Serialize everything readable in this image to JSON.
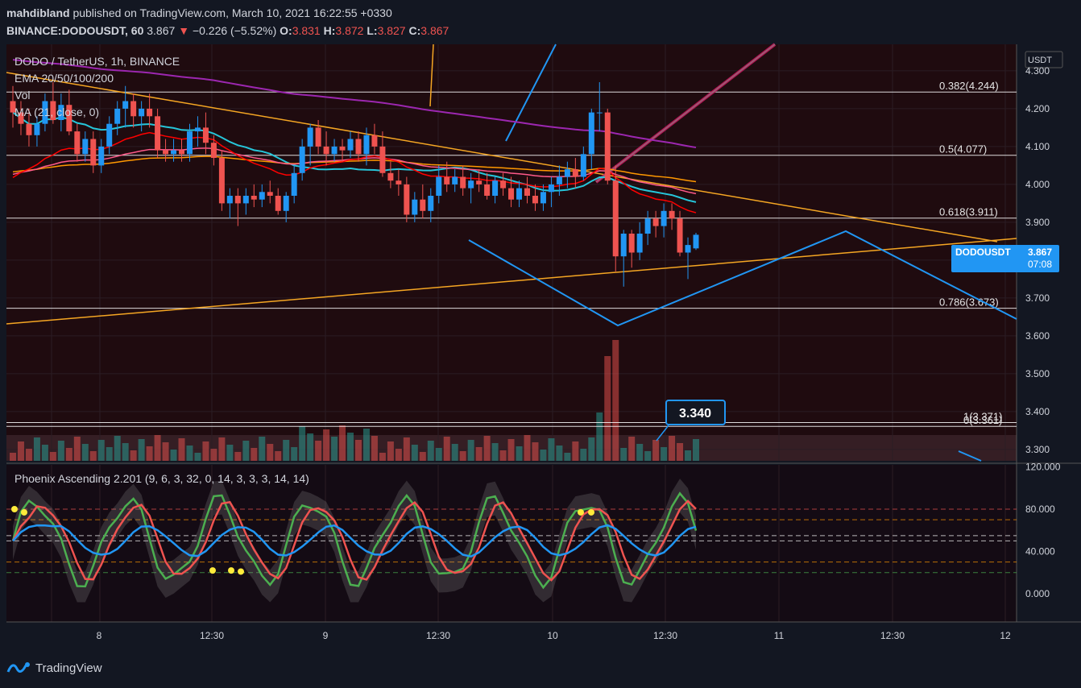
{
  "header": {
    "author": "mahdibland",
    "published_text": "published on TradingView.com, March 10, 2021 16:22:55 +0330",
    "symbol": "BINANCE:DODOUSDT, 60",
    "last": "3.867",
    "change": "−0.226 (−5.52%)",
    "o_label": "O:",
    "o": "3.831",
    "h_label": "H:",
    "h": "3.872",
    "l_label": "L:",
    "l": "3.827",
    "c_label": "C:",
    "c": "3.867"
  },
  "legend": {
    "title": "DODO / TetherUS, 1h, BINANCE",
    "ema": "EMA 20/50/100/200",
    "vol": "Vol",
    "ma": "MA (21, close, 0)",
    "osc": "Phoenix Ascending 2.201 (9, 6, 3, 32, 0, 14, 3, 3, 3, 14, 14)"
  },
  "price_axis": {
    "currency": "USDT",
    "ticks": [
      "4.300",
      "4.200",
      "4.100",
      "4.000",
      "3.900",
      "3.800",
      "3.700",
      "3.600",
      "3.500",
      "3.400",
      "3.300"
    ]
  },
  "osc_axis": {
    "ticks": [
      "120.000",
      "80.000",
      "40.000",
      "0.000"
    ]
  },
  "time_axis": {
    "ticks": [
      "8",
      "12:30",
      "9",
      "12:30",
      "10",
      "12:30",
      "11",
      "12:30",
      "12"
    ]
  },
  "fib_levels": [
    {
      "label": "0.382(4.244)",
      "value": 4.244
    },
    {
      "label": "0.5(4.077)",
      "value": 4.077
    },
    {
      "label": "0.618(3.911)",
      "value": 3.911
    },
    {
      "label": "0.786(3.673)",
      "value": 3.673
    },
    {
      "label": "1(3.371)",
      "value": 3.371
    },
    {
      "label": "0(3.361)",
      "value": 3.361
    }
  ],
  "price_tag": {
    "symbol": "DODOUSDT",
    "price": "3.867",
    "countdown": "07:08"
  },
  "callout": "3.340",
  "brand": "TradingView",
  "colors": {
    "up": "#2196f3",
    "down": "#ef5350",
    "ema20": "#ff0000",
    "ema50": "#ff9800",
    "ema100": "#ff5a8a",
    "ema200": "#9c27b0",
    "ma": "#26c6da",
    "fib": "#ffffff",
    "trend": "#f5a623",
    "blue": "#2196f3"
  },
  "chart_data": {
    "type": "candlestick",
    "title": "DODO / TetherUS, 1h, BINANCE",
    "ylim": [
      3.27,
      4.37
    ],
    "candles": [
      [
        4.22,
        4.26,
        4.15,
        4.19
      ],
      [
        4.19,
        4.22,
        4.13,
        4.16
      ],
      [
        4.16,
        4.2,
        4.1,
        4.13
      ],
      [
        4.13,
        4.18,
        4.1,
        4.16
      ],
      [
        4.16,
        4.24,
        4.14,
        4.22
      ],
      [
        4.22,
        4.27,
        4.16,
        4.17
      ],
      [
        4.17,
        4.24,
        4.14,
        4.21
      ],
      [
        4.21,
        4.25,
        4.13,
        4.14
      ],
      [
        4.14,
        4.16,
        4.06,
        4.08
      ],
      [
        4.08,
        4.14,
        4.06,
        4.12
      ],
      [
        4.12,
        4.14,
        4.03,
        4.05
      ],
      [
        4.05,
        4.12,
        4.03,
        4.1
      ],
      [
        4.1,
        4.18,
        4.08,
        4.16
      ],
      [
        4.16,
        4.22,
        4.13,
        4.2
      ],
      [
        4.2,
        4.26,
        4.15,
        4.22
      ],
      [
        4.22,
        4.24,
        4.15,
        4.18
      ],
      [
        4.18,
        4.22,
        4.14,
        4.2
      ],
      [
        4.2,
        4.24,
        4.15,
        4.18
      ],
      [
        4.18,
        4.2,
        4.07,
        4.09
      ],
      [
        4.09,
        4.12,
        4.06,
        4.08
      ],
      [
        4.08,
        4.12,
        4.06,
        4.09
      ],
      [
        4.09,
        4.12,
        4.06,
        4.08
      ],
      [
        4.08,
        4.16,
        4.06,
        4.14
      ],
      [
        4.14,
        4.18,
        4.1,
        4.15
      ],
      [
        4.15,
        4.19,
        4.08,
        4.11
      ],
      [
        4.11,
        4.13,
        4.05,
        4.07
      ],
      [
        4.07,
        4.09,
        3.93,
        3.95
      ],
      [
        3.95,
        3.99,
        3.91,
        3.97
      ],
      [
        3.97,
        3.99,
        3.89,
        3.95
      ],
      [
        3.95,
        3.99,
        3.92,
        3.97
      ],
      [
        3.97,
        4.0,
        3.94,
        3.96
      ],
      [
        3.96,
        4.0,
        3.94,
        3.98
      ],
      [
        3.98,
        4.01,
        3.95,
        3.97
      ],
      [
        3.97,
        3.99,
        3.92,
        3.93
      ],
      [
        3.93,
        3.98,
        3.9,
        3.97
      ],
      [
        3.97,
        4.05,
        3.95,
        4.03
      ],
      [
        4.03,
        4.12,
        4.01,
        4.1
      ],
      [
        4.1,
        4.16,
        4.05,
        4.15
      ],
      [
        4.15,
        4.17,
        4.08,
        4.1
      ],
      [
        4.1,
        4.14,
        4.05,
        4.08
      ],
      [
        4.08,
        4.12,
        4.06,
        4.1
      ],
      [
        4.1,
        4.12,
        4.06,
        4.09
      ],
      [
        4.09,
        4.14,
        4.07,
        4.12
      ],
      [
        4.12,
        4.14,
        4.06,
        4.08
      ],
      [
        4.08,
        4.15,
        4.05,
        4.13
      ],
      [
        4.13,
        4.16,
        4.08,
        4.1
      ],
      [
        4.1,
        4.14,
        4.02,
        4.03
      ],
      [
        4.03,
        4.06,
        3.99,
        4.01
      ],
      [
        4.01,
        4.04,
        3.97,
        4.0
      ],
      [
        4.0,
        4.02,
        3.9,
        3.92
      ],
      [
        3.92,
        3.98,
        3.9,
        3.96
      ],
      [
        3.96,
        4.0,
        3.91,
        3.93
      ],
      [
        3.93,
        3.99,
        3.9,
        3.97
      ],
      [
        3.97,
        4.05,
        3.95,
        4.02
      ],
      [
        4.02,
        4.06,
        3.98,
        4.0
      ],
      [
        4.0,
        4.04,
        3.98,
        4.02
      ],
      [
        4.02,
        4.05,
        3.97,
        3.99
      ],
      [
        3.99,
        4.03,
        3.95,
        4.01
      ],
      [
        4.01,
        4.04,
        3.98,
        4.0
      ],
      [
        4.0,
        4.03,
        3.96,
        3.97
      ],
      [
        3.97,
        4.02,
        3.95,
        4.01
      ],
      [
        4.01,
        4.03,
        3.97,
        3.99
      ],
      [
        3.99,
        4.02,
        3.94,
        3.96
      ],
      [
        3.96,
        4.01,
        3.94,
        3.99
      ],
      [
        3.99,
        4.02,
        3.95,
        3.97
      ],
      [
        3.97,
        4.0,
        3.93,
        3.95
      ],
      [
        3.95,
        4.0,
        3.93,
        3.98
      ],
      [
        3.98,
        4.02,
        3.94,
        4.0
      ],
      [
        4.0,
        4.05,
        3.97,
        4.02
      ],
      [
        4.02,
        4.06,
        3.99,
        4.04
      ],
      [
        4.04,
        4.07,
        3.99,
        4.02
      ],
      [
        4.02,
        4.1,
        4.01,
        4.08
      ],
      [
        4.08,
        4.2,
        4.04,
        4.19
      ],
      [
        4.19,
        4.27,
        4.14,
        4.19
      ],
      [
        4.19,
        4.2,
        4.0,
        4.01
      ],
      [
        4.01,
        4.05,
        3.77,
        3.81
      ],
      [
        3.81,
        3.88,
        3.73,
        3.87
      ],
      [
        3.87,
        3.88,
        3.78,
        3.82
      ],
      [
        3.82,
        3.9,
        3.8,
        3.87
      ],
      [
        3.87,
        3.93,
        3.84,
        3.91
      ],
      [
        3.91,
        3.93,
        3.86,
        3.89
      ],
      [
        3.89,
        3.95,
        3.86,
        3.93
      ],
      [
        3.93,
        3.95,
        3.88,
        3.91
      ],
      [
        3.91,
        3.93,
        3.81,
        3.82
      ],
      [
        3.82,
        3.86,
        3.75,
        3.84
      ],
      [
        3.831,
        3.872,
        3.827,
        3.867
      ]
    ]
  }
}
